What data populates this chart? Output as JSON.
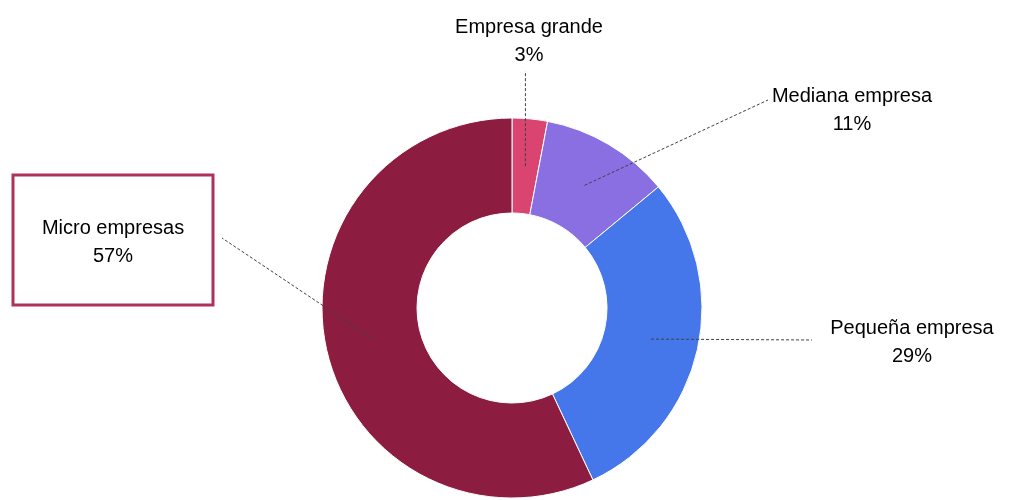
{
  "chart_data": {
    "type": "donut",
    "categories": [
      "Empresa grande",
      "Mediana empresa",
      "Pequeña empresa",
      "Micro empresas"
    ],
    "values": [
      3,
      11,
      29,
      57
    ],
    "value_labels": [
      "3%",
      "11%",
      "29%",
      "57%"
    ],
    "colors": [
      "#d94471",
      "#8a6fe2",
      "#4677ea",
      "#8c1c40"
    ],
    "legend": false
  }
}
